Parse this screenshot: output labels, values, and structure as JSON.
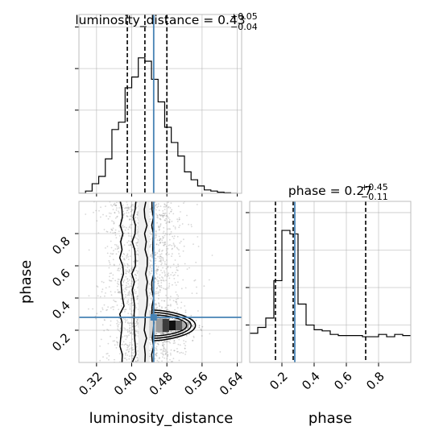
{
  "chart_data": {
    "type": "corner",
    "params": [
      "luminosity_distance",
      "phase"
    ],
    "truths": {
      "luminosity_distance": 0.45,
      "phase": 0.28
    },
    "panels": [
      {
        "id": "hist-luminosity-distance",
        "type": "histogram",
        "parameter": "luminosity_distance",
        "title": {
          "name": "luminosity_distance",
          "value": "0.43",
          "plus": "+0.05",
          "minus": "−0.04"
        },
        "xlim": [
          0.28,
          0.65
        ],
        "bin_edges": [
          0.28,
          0.295,
          0.31,
          0.325,
          0.34,
          0.355,
          0.37,
          0.385,
          0.4,
          0.415,
          0.43,
          0.445,
          0.46,
          0.475,
          0.49,
          0.505,
          0.52,
          0.535,
          0.55,
          0.565,
          0.58,
          0.595,
          0.61,
          0.625,
          0.64
        ],
        "counts": [
          0,
          4,
          17,
          30,
          61,
          113,
          126,
          187,
          206,
          240,
          234,
          202,
          162,
          117,
          90,
          66,
          38,
          24,
          13,
          6,
          4,
          2,
          1,
          0
        ],
        "quantiles": [
          0.39,
          0.43,
          0.48
        ],
        "grid": true
      },
      {
        "id": "hist-phase",
        "type": "histogram",
        "parameter": "phase",
        "title": {
          "name": "phase",
          "value": "0.27",
          "plus": "+0.45",
          "minus": "−0.11"
        },
        "xlim": [
          0.0,
          1.0
        ],
        "bin_edges": [
          0.0,
          0.05,
          0.1,
          0.15,
          0.2,
          0.25,
          0.3,
          0.35,
          0.4,
          0.45,
          0.5,
          0.55,
          0.6,
          0.65,
          0.7,
          0.75,
          0.8,
          0.85,
          0.9,
          0.95,
          1.0
        ],
        "counts": [
          25,
          30,
          38,
          70,
          113,
          110,
          50,
          32,
          28,
          27,
          24,
          23,
          23,
          23,
          22,
          22,
          24,
          22,
          24,
          23
        ],
        "quantiles": [
          0.16,
          0.27,
          0.72
        ],
        "grid": true
      },
      {
        "id": "scatter-luminosity-distance-phase",
        "type": "2d-density",
        "x": "luminosity_distance",
        "y": "phase",
        "xlim": [
          0.28,
          0.65
        ],
        "ylim": [
          0.0,
          1.0
        ],
        "grid": true
      }
    ],
    "axes": {
      "x_ticks_lumdist": [
        "0.32",
        "0.40",
        "0.48",
        "0.56",
        "0.64"
      ],
      "x_ticks_phase": [
        "0.2",
        "0.4",
        "0.6",
        "0.8"
      ],
      "y_ticks_phase": [
        "0.2",
        "0.4",
        "0.6",
        "0.8"
      ],
      "xlabel_left": "luminosity_distance",
      "xlabel_right": "phase",
      "ylabel": "phase"
    },
    "colors": {
      "truth": "#4682b4",
      "hist": "#000000",
      "points": "#8c8c8c",
      "grid": "#b0b0b0"
    }
  }
}
